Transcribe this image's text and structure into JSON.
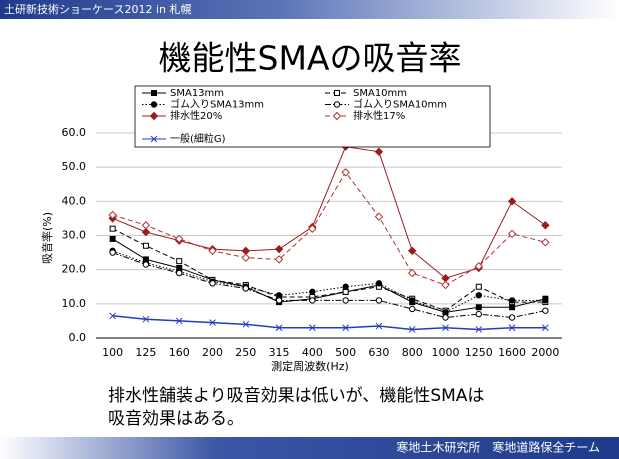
{
  "header": "土研新技術ショーケース2012 in 札幌",
  "footer": "寒地土木研究所　寒地道路保全チーム",
  "caption": [
    "排水性舗装より吸音効果は低いが、機能性SMAは",
    "吸音効果はある。"
  ],
  "chart_data": {
    "type": "line",
    "title": "機能性SMAの吸音率",
    "x_label": "測定周波数(Hz)",
    "y_label": "吸音率(%)",
    "categories": [
      "100",
      "125",
      "160",
      "200",
      "250",
      "315",
      "400",
      "500",
      "630",
      "800",
      "1000",
      "1250",
      "1600",
      "2000"
    ],
    "ylim": [
      0,
      60
    ],
    "yticks": [
      {
        "value": 0,
        "label": "0.0"
      },
      {
        "value": 10,
        "label": "10.0"
      },
      {
        "value": 20,
        "label": "20.0"
      },
      {
        "value": 30,
        "label": "30.0"
      },
      {
        "value": 40,
        "label": "40.0"
      },
      {
        "value": 50,
        "label": "50.0"
      },
      {
        "value": 60,
        "label": "60.0"
      }
    ],
    "grid": true,
    "series": [
      {
        "name": "SMA13mm",
        "color": "#000000",
        "dash": "none",
        "marker": "square",
        "filled": true,
        "values": [
          29,
          23,
          20.5,
          17,
          15,
          10.5,
          11.5,
          13.5,
          15.5,
          10.5,
          7.5,
          9,
          9,
          11.5
        ]
      },
      {
        "name": "SMA10mm",
        "color": "#000000",
        "dash": "5,3",
        "marker": "square",
        "filled": false,
        "values": [
          32,
          27,
          22.5,
          17,
          15.5,
          12,
          12,
          13.5,
          15,
          11.5,
          8,
          15,
          10.5,
          10.5
        ]
      },
      {
        "name": "ゴム入りSMA13mm",
        "color": "#000000",
        "dash": "1.5,2",
        "marker": "circle",
        "filled": true,
        "values": [
          25.5,
          22,
          19.5,
          16.5,
          15,
          12.5,
          13.5,
          15,
          16,
          11,
          7.5,
          12.5,
          11,
          11
        ]
      },
      {
        "name": "ゴム入りSMA10mm",
        "color": "#000000",
        "dash": "6,2,1.5,2",
        "marker": "circle",
        "filled": false,
        "values": [
          25,
          21.5,
          19,
          16,
          14.5,
          11,
          11,
          11,
          11,
          8.5,
          6,
          7,
          6,
          8
        ]
      },
      {
        "name": "排水性20%",
        "color": "#9b1c1c",
        "dash": "none",
        "marker": "diamond",
        "filled": true,
        "values": [
          35,
          31,
          28.5,
          26,
          25.5,
          26,
          32.5,
          56,
          54.5,
          25.5,
          17.5,
          20.5,
          40,
          33
        ]
      },
      {
        "name": "排水性17%",
        "color": "#b03030",
        "dash": "5,3",
        "marker": "diamond",
        "filled": false,
        "values": [
          36,
          33,
          29,
          25.5,
          23.5,
          23,
          32,
          48.5,
          35.5,
          19,
          15.5,
          21,
          30.5,
          28
        ]
      },
      {
        "name": "一般(細粒G)",
        "color": "#1f3fbf",
        "dash": "none",
        "marker": "x",
        "filled": false,
        "values": [
          6.5,
          5.5,
          5,
          4.5,
          4,
          3,
          3,
          3,
          3.5,
          2.5,
          3,
          2.5,
          3,
          3
        ]
      }
    ]
  }
}
